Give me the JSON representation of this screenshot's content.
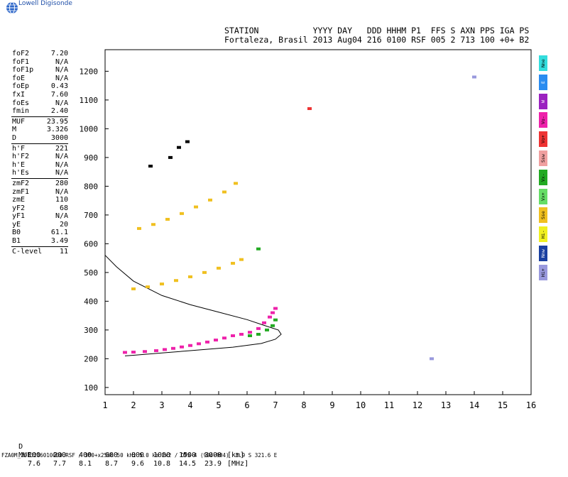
{
  "brand": {
    "name": "Lowell Digisonde"
  },
  "header": {
    "line1": "STATION           YYYY DAY   DDD HHHM P1  FFS S AXN PPS IGA PS",
    "line2": "Fortaleza, Brasil 2013 Aug04 216 0100 RSF 005 2 713 100 +0+ B2"
  },
  "params": {
    "group1": [
      {
        "label": "foF2",
        "value": "7.20"
      },
      {
        "label": "foF1",
        "value": "N/A"
      },
      {
        "label": "foF1p",
        "value": "N/A"
      },
      {
        "label": "foE",
        "value": "N/A"
      },
      {
        "label": "foEp",
        "value": "0.43"
      },
      {
        "label": "fxI",
        "value": "7.60"
      },
      {
        "label": "foEs",
        "value": "N/A"
      },
      {
        "label": "fmin",
        "value": "2.40"
      }
    ],
    "group2": [
      {
        "label": "MUF",
        "value": "23.95"
      },
      {
        "label": "M",
        "value": "3.326"
      },
      {
        "label": "D",
        "value": "3000"
      }
    ],
    "group3": [
      {
        "label": "h'F",
        "value": "221"
      },
      {
        "label": "h'F2",
        "value": "N/A"
      },
      {
        "label": "h'E",
        "value": "N/A"
      },
      {
        "label": "h'Es",
        "value": "N/A"
      }
    ],
    "group4": [
      {
        "label": "zmF2",
        "value": "280"
      },
      {
        "label": "zmF1",
        "value": "N/A"
      },
      {
        "label": "zmE",
        "value": "110"
      },
      {
        "label": "yF2",
        "value": "68"
      },
      {
        "label": "yF1",
        "value": "N/A"
      },
      {
        "label": "yE",
        "value": "20"
      },
      {
        "label": "B0",
        "value": "61.1"
      },
      {
        "label": "B1",
        "value": "3.49"
      }
    ],
    "group5": [
      {
        "label": "C-level",
        "value": "11"
      }
    ]
  },
  "legend": [
    {
      "label": "Nne",
      "color": "#33dddd"
    },
    {
      "label": "E",
      "color": "#2a8cf0"
    },
    {
      "label": "W",
      "color": "#9b22c0"
    },
    {
      "label": "Vo-",
      "color": "#ee22aa"
    },
    {
      "label": "Vo+",
      "color": "#ee3333"
    },
    {
      "label": "Ssw",
      "color": "#f0a0a0"
    },
    {
      "label": "Vx-",
      "color": "#22aa22"
    },
    {
      "label": "Vx+",
      "color": "#66dd66"
    },
    {
      "label": "Sse",
      "color": "#f0c020"
    },
    {
      "label": "Hi-",
      "color": "#f0f020"
    },
    {
      "label": "Nnw",
      "color": "#1a3fa0"
    },
    {
      "label": "Hi+",
      "color": "#9999dd"
    }
  ],
  "bottom_table": {
    "d_label": "D",
    "muf_label": "MUF",
    "d_values": [
      "100",
      "200",
      "400",
      "600",
      "800",
      "1000",
      "1500",
      "3000"
    ],
    "d_unit": "[km]",
    "muf_values": [
      "7.6",
      "7.7",
      "8.1",
      "8.7",
      "9.6",
      "10.8",
      "14.5",
      "23.9"
    ],
    "muf_unit": "[MHz]"
  },
  "footer": "FZA0M_2013216010000.RSF / 300+x256h 50 kHz 5.0 km 2x2 / DPS-4 (904-904)  3.9 S 321.6 E",
  "chart_data": {
    "type": "scatter",
    "title": "",
    "xlabel": "",
    "ylabel": "",
    "xlim": [
      1,
      16
    ],
    "ylim": [
      75,
      1275
    ],
    "xticks": [
      1,
      2,
      3,
      4,
      5,
      6,
      7,
      8,
      9,
      10,
      11,
      12,
      13,
      14,
      15,
      16
    ],
    "yticks": [
      100,
      200,
      300,
      400,
      500,
      600,
      700,
      800,
      900,
      1000,
      1100,
      1200
    ],
    "grid": false,
    "legend_position": "right",
    "series": [
      {
        "color": "#ee22aa",
        "points": [
          [
            1.7,
            222
          ],
          [
            2.0,
            223
          ],
          [
            2.4,
            225
          ],
          [
            2.8,
            228
          ],
          [
            3.1,
            232
          ],
          [
            3.4,
            236
          ],
          [
            3.7,
            241
          ],
          [
            4.0,
            246
          ],
          [
            4.3,
            252
          ],
          [
            4.6,
            258
          ],
          [
            4.9,
            265
          ],
          [
            5.2,
            272
          ],
          [
            5.5,
            280
          ],
          [
            5.8,
            285
          ],
          [
            6.1,
            292
          ],
          [
            6.4,
            305
          ],
          [
            6.6,
            325
          ],
          [
            6.8,
            345
          ],
          [
            6.9,
            360
          ],
          [
            7.0,
            375
          ]
        ]
      },
      {
        "color": "#22aa22",
        "points": [
          [
            6.1,
            280
          ],
          [
            6.4,
            285
          ],
          [
            6.7,
            300
          ],
          [
            6.9,
            315
          ],
          [
            7.0,
            335
          ]
        ]
      },
      {
        "color": "#f0c020",
        "points": [
          [
            2.0,
            443
          ],
          [
            2.5,
            450
          ],
          [
            3.0,
            460
          ],
          [
            3.5,
            472
          ],
          [
            4.0,
            485
          ],
          [
            4.5,
            500
          ],
          [
            5.0,
            515
          ],
          [
            5.5,
            532
          ],
          [
            5.8,
            545
          ]
        ]
      },
      {
        "color": "#f0c020",
        "points": [
          [
            2.2,
            653
          ],
          [
            2.7,
            667
          ],
          [
            3.2,
            685
          ],
          [
            3.7,
            705
          ],
          [
            4.2,
            728
          ],
          [
            4.7,
            752
          ],
          [
            5.2,
            780
          ],
          [
            5.6,
            810
          ]
        ]
      },
      {
        "color": "#000000",
        "points": [
          [
            2.6,
            870
          ],
          [
            3.3,
            900
          ],
          [
            3.6,
            935
          ],
          [
            3.9,
            955
          ]
        ]
      },
      {
        "color": "#22aa22",
        "points": [
          [
            6.4,
            582
          ]
        ]
      },
      {
        "color": "#ee3333",
        "points": [
          [
            8.2,
            1070
          ]
        ]
      },
      {
        "color": "#9999dd",
        "points": [
          [
            12.5,
            200
          ],
          [
            14.0,
            1180
          ]
        ]
      }
    ],
    "profile": {
      "points": [
        [
          1.0,
          560
        ],
        [
          1.4,
          520
        ],
        [
          2.0,
          470
        ],
        [
          3.0,
          420
        ],
        [
          4.0,
          388
        ],
        [
          5.0,
          362
        ],
        [
          6.0,
          336
        ],
        [
          6.6,
          316
        ],
        [
          7.1,
          300
        ],
        [
          7.2,
          285
        ],
        [
          7.0,
          268
        ],
        [
          6.5,
          253
        ],
        [
          5.5,
          240
        ],
        [
          4.5,
          232
        ],
        [
          3.0,
          220
        ],
        [
          2.0,
          212
        ],
        [
          1.7,
          210
        ]
      ]
    }
  }
}
